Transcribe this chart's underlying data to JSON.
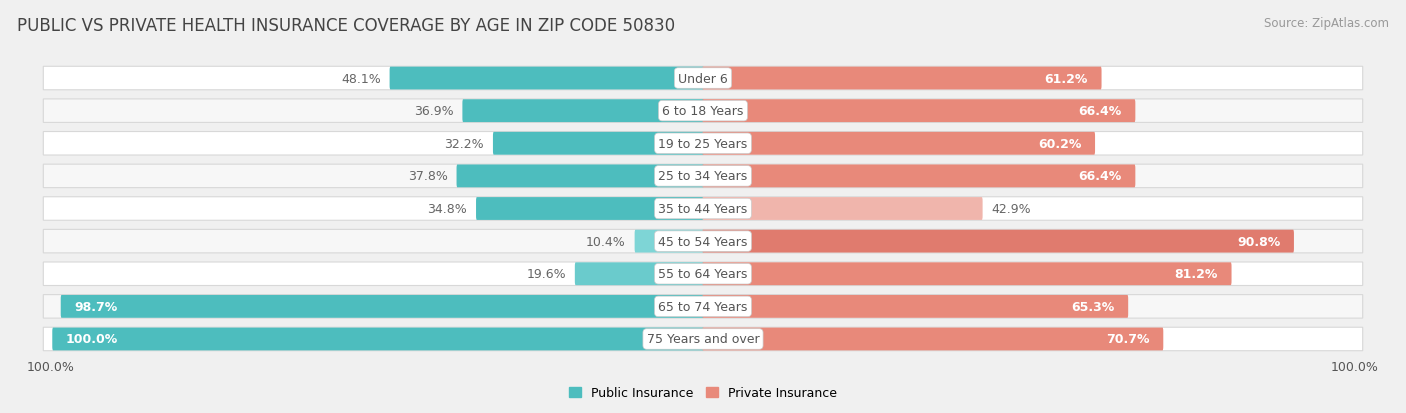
{
  "title": "PUBLIC VS PRIVATE HEALTH INSURANCE COVERAGE BY AGE IN ZIP CODE 50830",
  "source": "Source: ZipAtlas.com",
  "categories": [
    "Under 6",
    "6 to 18 Years",
    "19 to 25 Years",
    "25 to 34 Years",
    "35 to 44 Years",
    "45 to 54 Years",
    "55 to 64 Years",
    "65 to 74 Years",
    "75 Years and over"
  ],
  "public_values": [
    48.1,
    36.9,
    32.2,
    37.8,
    34.8,
    10.4,
    19.6,
    98.7,
    100.0
  ],
  "private_values": [
    61.2,
    66.4,
    60.2,
    66.4,
    42.9,
    90.8,
    81.2,
    65.3,
    70.7
  ],
  "public_color": "#4dbdbe",
  "private_color_dark": "#e07b6e",
  "private_color_medium": "#e8897a",
  "private_color_light": "#f0b5ac",
  "public_color_light": "#7ed5d6",
  "bg_color": "#f0f0f0",
  "row_bg_color": "#ffffff",
  "row_alt_bg_color": "#f7f7f7",
  "row_border_color": "#d8d8d8",
  "max_value": 100.0,
  "legend_public": "Public Insurance",
  "legend_private": "Private Insurance",
  "title_fontsize": 12,
  "label_fontsize": 9,
  "category_fontsize": 9,
  "source_fontsize": 8.5,
  "value_label_threshold_inside": 50
}
